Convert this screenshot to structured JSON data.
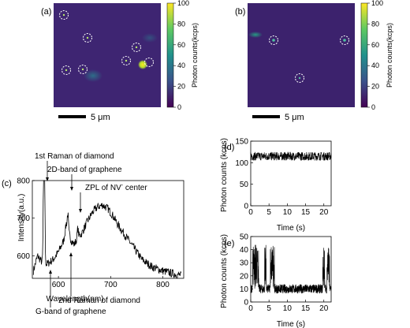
{
  "chart_data": [
    {
      "panel": "(a)",
      "type": "heatmap",
      "colorbar": {
        "label": "Photon counts(kcps)",
        "ticks": [
          0,
          20,
          40,
          60,
          80,
          100
        ],
        "range": [
          0,
          100
        ],
        "colors": [
          "#440154",
          "#3b528b",
          "#21918c",
          "#5ec962",
          "#fde725"
        ]
      },
      "scalebar_label": "5 μm",
      "background_level": 12,
      "bright_spot_level": 100,
      "circled_emitters": 7
    },
    {
      "panel": "(b)",
      "type": "heatmap",
      "colorbar": {
        "label": "Photon counts(kcps)",
        "ticks": [
          0,
          20,
          40,
          60,
          80,
          100
        ],
        "range": [
          0,
          100
        ]
      },
      "scalebar_label": "5 μm",
      "background_level": 10,
      "circled_emitters": 3
    },
    {
      "panel": "(c)",
      "type": "line",
      "xlabel": "Wavelength(nm)",
      "ylabel": "Intensity(a.u.)",
      "xlim": [
        550,
        840
      ],
      "ylim": [
        540,
        800
      ],
      "xticks": [
        600,
        700,
        800
      ],
      "yticks": [
        600,
        700,
        800
      ],
      "series": [
        {
          "x": [
            552,
            560,
            570,
            575,
            580,
            590,
            600,
            610,
            615,
            620,
            625,
            630,
            638,
            645,
            655,
            665,
            675,
            685,
            695,
            705,
            715,
            730,
            745,
            760,
            780,
            800,
            820,
            835
          ],
          "y": [
            560,
            600,
            580,
            575,
            580,
            590,
            610,
            640,
            685,
            660,
            640,
            630,
            650,
            660,
            690,
            715,
            730,
            735,
            725,
            705,
            680,
            650,
            620,
            590,
            570,
            560,
            552,
            548
          ]
        }
      ],
      "peaks": [
        {
          "x": 572,
          "y": 795
        },
        {
          "x": 573,
          "y": 790
        },
        {
          "x": 618,
          "y": 712
        },
        {
          "x": 637,
          "y": 672
        }
      ],
      "annotations": [
        {
          "text": "1st Raman of diamond",
          "x": 572
        },
        {
          "text": "2D-band of graphene",
          "x": 619
        },
        {
          "text": "ZPL of NV",
          "superscript": "-",
          "suffix": " center",
          "x": 637
        },
        {
          "text": "2nd Raman of diamond",
          "x": 618
        },
        {
          "text": "G-band of graphene",
          "x": 583
        }
      ]
    },
    {
      "panel": "(d)",
      "type": "line",
      "xlabel": "Time (s)",
      "ylabel": "Photon counts (kcps)",
      "xlim": [
        0,
        22
      ],
      "ylim": [
        0,
        150
      ],
      "xticks": [
        0,
        5,
        10,
        15,
        20
      ],
      "yticks": [
        0,
        50,
        100,
        150
      ],
      "mean_level": 115,
      "noise_amplitude": 10
    },
    {
      "panel": "(e)",
      "type": "line",
      "xlabel": "Time (s)",
      "ylabel": "Photon counts (kcps)",
      "xlim": [
        0,
        22
      ],
      "ylim": [
        0,
        50
      ],
      "xticks": [
        0,
        5,
        10,
        15,
        20
      ],
      "yticks": [
        0,
        10,
        20,
        30,
        40,
        50
      ],
      "off_level": 10,
      "on_level": 30,
      "on_intervals": [
        [
          0.5,
          2.2
        ],
        [
          3.8,
          4.2
        ],
        [
          5.3,
          6.5
        ],
        [
          19.7,
          20.3
        ],
        [
          20.8,
          21.6
        ]
      ]
    }
  ]
}
